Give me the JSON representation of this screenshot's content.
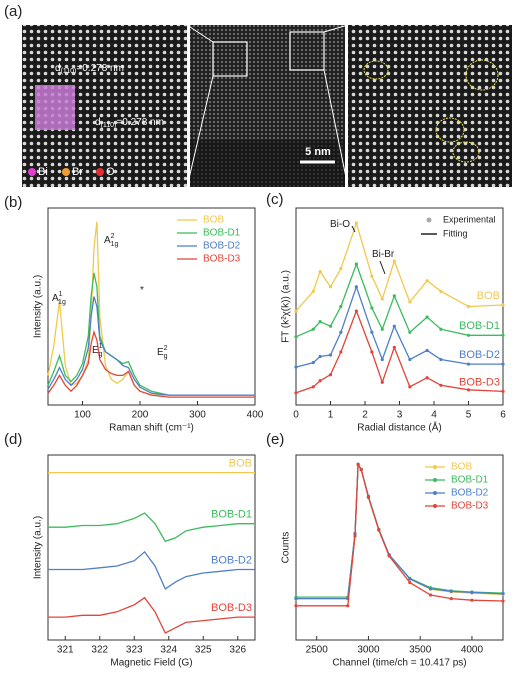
{
  "panel_a": {
    "label": "(a)",
    "annotations": [
      {
        "text": "d",
        "sub": "(110)",
        "rest": "=0.278 nm"
      },
      {
        "text": "d",
        "sub": "(110)",
        "rest": "=0.278 nm"
      }
    ],
    "legend": [
      "Bi",
      "Br",
      "O"
    ],
    "scale_bar": "5 nm"
  },
  "chart_data": [
    {
      "type": "line",
      "label": "(b)",
      "x_label": "Raman shift (cm⁻¹)",
      "y_label": "Intensity (a.u.)",
      "x": [
        40,
        50,
        60,
        70,
        80,
        90,
        100,
        110,
        115,
        120,
        125,
        130,
        140,
        150,
        160,
        170,
        180,
        190,
        200,
        220,
        250,
        300,
        350,
        400
      ],
      "xlim": [
        40,
        400
      ],
      "xticks": [
        100,
        200,
        300,
        400
      ],
      "ylim": [
        0.5,
        10.5
      ],
      "legend": "upper right",
      "series": [
        {
          "name": "BOB",
          "color": "#f2c94c",
          "values": [
            2,
            3.5,
            5.8,
            2.5,
            1.5,
            1.6,
            2,
            2.8,
            5,
            8.5,
            9.8,
            5,
            2.5,
            1.8,
            1.6,
            1.8,
            2.2,
            1.5,
            1.2,
            1,
            1,
            1,
            1,
            1
          ]
        },
        {
          "name": "BOB-D1",
          "color": "#3dbb5e",
          "values": [
            1.5,
            2.2,
            3,
            2,
            1.7,
            2,
            2.6,
            4,
            6,
            7.2,
            6.5,
            4,
            3.2,
            3,
            2.8,
            2.6,
            2.7,
            2,
            1.5,
            1.2,
            1,
            1,
            1,
            1
          ]
        },
        {
          "name": "BOB-D2",
          "color": "#4f7fc8",
          "values": [
            1.3,
            1.8,
            2.4,
            1.8,
            1.5,
            1.8,
            2.3,
            3.4,
            5,
            6,
            5.5,
            3.8,
            3.2,
            3,
            2.8,
            2.5,
            2.4,
            1.8,
            1.4,
            1.1,
            1,
            1,
            1,
            1
          ]
        },
        {
          "name": "BOB-D3",
          "color": "#e2453a",
          "values": [
            1.1,
            1.5,
            2,
            1.5,
            1.2,
            1.5,
            2,
            2.6,
            3.6,
            4.2,
            3.8,
            2.8,
            2.3,
            2.1,
            2,
            2,
            2.2,
            1.5,
            1.2,
            1,
            0.9,
            0.9,
            0.9,
            0.9
          ]
        }
      ],
      "annotations": [
        {
          "text": "A",
          "sup": "1",
          "sub": "1g"
        },
        {
          "text": "E",
          "sup": "1",
          "sub": "g"
        },
        {
          "text": "A",
          "sup": "2",
          "sub": "1g"
        },
        {
          "text": "E",
          "sup": "2",
          "sub": "g"
        },
        {
          "text": "*"
        }
      ]
    },
    {
      "type": "line",
      "label": "(c)",
      "x_label": "Radial distance (Å)",
      "y_label": "FT (k²χ(k)) (a.u.)",
      "x": [
        0,
        0.5,
        0.7,
        1,
        1.3,
        1.75,
        2.2,
        2.5,
        2.85,
        3.3,
        3.8,
        4.2,
        5,
        6
      ],
      "xlim": [
        0,
        6
      ],
      "xticks": [
        0,
        1,
        2,
        3,
        4,
        5,
        6
      ],
      "ylim": [
        0,
        13
      ],
      "legend": "inline",
      "legend_items": [
        "Experimental",
        "Fitting"
      ],
      "series": [
        {
          "name": "BOB",
          "color": "#f2c94c",
          "values": [
            6.2,
            7.5,
            8.8,
            7.8,
            9,
            12,
            8.5,
            7,
            9.5,
            6.8,
            8.2,
            7.5,
            6.5,
            6.6
          ]
        },
        {
          "name": "BOB-D1",
          "color": "#3dbb5e",
          "values": [
            4.5,
            5,
            5.5,
            5.2,
            6.5,
            9.3,
            6.4,
            5,
            7.2,
            4.8,
            5.8,
            5,
            4.6,
            4.6
          ]
        },
        {
          "name": "BOB-D2",
          "color": "#4f7fc8",
          "values": [
            2.5,
            2.8,
            3.2,
            3.3,
            4.8,
            7.8,
            4.8,
            3,
            5.2,
            3,
            3.6,
            3,
            2.7,
            2.7
          ]
        },
        {
          "name": "BOB-D3",
          "color": "#e2453a",
          "values": [
            0.8,
            1.2,
            1.6,
            2,
            3.5,
            6.2,
            3.5,
            1.5,
            3.8,
            1.2,
            1.8,
            1.3,
            1,
            0.9
          ]
        }
      ],
      "annotations": [
        {
          "text": "Bi-O"
        },
        {
          "text": "Bi-Br"
        }
      ]
    },
    {
      "type": "line",
      "label": "(d)",
      "x_label": "Magnetic Field (G)",
      "y_label": "Intensity (a.u.)",
      "x": [
        320.5,
        321,
        321.5,
        322,
        322.5,
        323,
        323.3,
        323.6,
        323.9,
        324.2,
        324.5,
        325,
        325.5,
        326,
        326.5
      ],
      "xlim": [
        320.5,
        326.5
      ],
      "xticks": [
        321,
        322,
        323,
        324,
        325,
        326
      ],
      "ylim": [
        0,
        10.5
      ],
      "legend": "inline",
      "series": [
        {
          "name": "BOB",
          "color": "#f2c94c",
          "values": [
            9.5,
            9.5,
            9.5,
            9.5,
            9.5,
            9.5,
            9.5,
            9.5,
            9.5,
            9.5,
            9.5,
            9.5,
            9.5,
            9.5,
            9.5
          ]
        },
        {
          "name": "BOB-D1",
          "color": "#3dbb5e",
          "values": [
            6.4,
            6.4,
            6.5,
            6.5,
            6.6,
            6.9,
            7.2,
            6.6,
            5.6,
            5.8,
            6.2,
            6.4,
            6.5,
            6.6,
            6.6
          ]
        },
        {
          "name": "BOB-D2",
          "color": "#4f7fc8",
          "values": [
            4,
            4,
            4,
            4.1,
            4.2,
            4.5,
            5,
            4.2,
            2.9,
            3.3,
            3.6,
            3.8,
            3.9,
            4,
            4
          ]
        },
        {
          "name": "BOB-D3",
          "color": "#e2453a",
          "values": [
            1.3,
            1.3,
            1.4,
            1.4,
            1.6,
            2,
            2.4,
            1.6,
            0.4,
            0.7,
            1,
            1.1,
            1.2,
            1.3,
            1.3
          ]
        }
      ]
    },
    {
      "type": "scatter",
      "label": "(e)",
      "x_label": "Channel (time/ch = 10.417 ps)",
      "y_label": "Counts",
      "x": [
        2300,
        2800,
        2870,
        2900,
        2930,
        3000,
        3100,
        3200,
        3400,
        3600,
        3800,
        4000,
        4300
      ],
      "xlim": [
        2300,
        4300
      ],
      "xticks": [
        2500,
        3000,
        3500,
        4000
      ],
      "ylim": [
        5,
        15000
      ],
      "yscale": "log",
      "legend": "upper right",
      "series": [
        {
          "name": "BOB",
          "color": "#f2c94c",
          "values": [
            30,
            30,
            500,
            10000,
            8000,
            2500,
            600,
            200,
            70,
            45,
            40,
            38,
            36
          ]
        },
        {
          "name": "BOB-D1",
          "color": "#3dbb5e",
          "values": [
            32,
            32,
            500,
            10000,
            8000,
            2500,
            600,
            200,
            72,
            48,
            42,
            40,
            38
          ]
        },
        {
          "name": "BOB-D2",
          "color": "#4f7fc8",
          "values": [
            30,
            30,
            500,
            10000,
            8000,
            2500,
            600,
            200,
            70,
            46,
            41,
            39,
            37
          ]
        },
        {
          "name": "BOB-D3",
          "color": "#e2453a",
          "values": [
            22,
            22,
            450,
            10000,
            8000,
            2400,
            580,
            190,
            60,
            35,
            30,
            28,
            27
          ]
        }
      ]
    }
  ]
}
